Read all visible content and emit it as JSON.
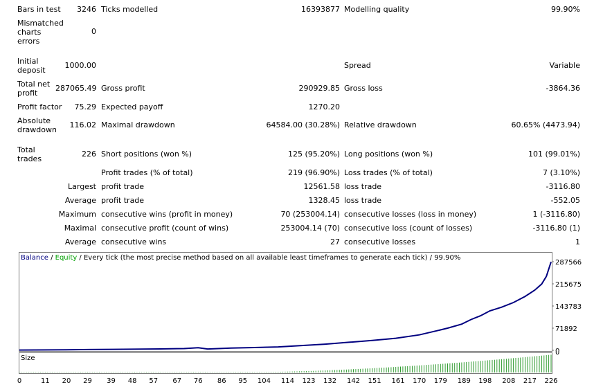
{
  "report": {
    "bars_in_test": {
      "label": "Bars in test",
      "value": "3246"
    },
    "ticks_modelled": {
      "label": "Ticks modelled",
      "value": "16393877"
    },
    "modelling_quality": {
      "label": "Modelling quality",
      "value": "99.90%"
    },
    "mismatched_errors": {
      "label": "Mismatched charts errors",
      "value": "0"
    },
    "initial_deposit": {
      "label": "Initial deposit",
      "value": "1000.00"
    },
    "spread": {
      "label": "Spread",
      "value": "Variable"
    },
    "total_net_profit": {
      "label": "Total net profit",
      "value": "287065.49"
    },
    "gross_profit": {
      "label": "Gross profit",
      "value": "290929.85"
    },
    "gross_loss": {
      "label": "Gross loss",
      "value": "-3864.36"
    },
    "profit_factor": {
      "label": "Profit factor",
      "value": "75.29"
    },
    "expected_payoff": {
      "label": "Expected payoff",
      "value": "1270.20"
    },
    "absolute_drawdown": {
      "label": "Absolute drawdown",
      "value": "116.02"
    },
    "maximal_drawdown": {
      "label": "Maximal drawdown",
      "value": "64584.00 (30.28%)"
    },
    "relative_drawdown": {
      "label": "Relative drawdown",
      "value": "60.65% (4473.94)"
    },
    "total_trades": {
      "label": "Total trades",
      "value": "226"
    },
    "short_positions": {
      "label": "Short positions (won %)",
      "value": "125 (95.20%)"
    },
    "long_positions": {
      "label": "Long positions (won %)",
      "value": "101 (99.01%)"
    },
    "profit_trades": {
      "label": "Profit trades (% of total)",
      "value": "219 (96.90%)"
    },
    "loss_trades": {
      "label": "Loss trades (% of total)",
      "value": "7 (3.10%)"
    },
    "largest": {
      "prefix": "Largest",
      "profit_label": "profit trade",
      "profit_value": "12561.58",
      "loss_label": "loss trade",
      "loss_value": "-3116.80"
    },
    "average": {
      "prefix": "Average",
      "profit_label": "profit trade",
      "profit_value": "1328.45",
      "loss_label": "loss trade",
      "loss_value": "-552.05"
    },
    "maximum": {
      "prefix": "Maximum",
      "profit_label": "consecutive wins (profit in money)",
      "profit_value": "70 (253004.14)",
      "loss_label": "consecutive losses (loss in money)",
      "loss_value": "1 (-3116.80)"
    },
    "maximal": {
      "prefix": "Maximal",
      "profit_label": "consecutive profit (count of wins)",
      "profit_value": "253004.14 (70)",
      "loss_label": "consecutive loss (count of losses)",
      "loss_value": "-3116.80 (1)"
    },
    "average_consecutive": {
      "prefix": "Average",
      "profit_label": "consecutive wins",
      "profit_value": "27",
      "loss_label": "consecutive losses",
      "loss_value": "1"
    }
  },
  "chart": {
    "legend": {
      "balance": "Balance",
      "sep1": " / ",
      "equity": "Equity",
      "rest": " / Every tick (the most precise method based on all available least timeframes to generate each tick) / 99.90%"
    },
    "colors": {
      "balance": "#000080",
      "equity": "#00a000",
      "size_bars": "#2e9a2e"
    },
    "size_label": "Size",
    "size_zero_label": "0"
  },
  "chart_data": {
    "type": "line",
    "x_range": [
      0,
      226
    ],
    "ylim": [
      0,
      287566
    ],
    "y_ticks": [
      "287566",
      "215675",
      "143783",
      "71892",
      "0"
    ],
    "x_ticks": [
      "0",
      "11",
      "20",
      "29",
      "39",
      "48",
      "57",
      "67",
      "76",
      "86",
      "95",
      "104",
      "114",
      "123",
      "132",
      "142",
      "151",
      "161",
      "170",
      "179",
      "189",
      "198",
      "208",
      "217",
      "226"
    ],
    "series": [
      {
        "name": "Balance",
        "x": [
          0,
          20,
          40,
          60,
          70,
          76,
          80,
          90,
          100,
          110,
          120,
          130,
          140,
          150,
          160,
          170,
          178,
          182,
          188,
          192,
          196,
          200,
          205,
          210,
          215,
          219,
          222,
          224,
          226
        ],
        "y": [
          1000,
          1800,
          3200,
          4500,
          5600,
          8500,
          4300,
          7500,
          9000,
          11000,
          15500,
          20000,
          26000,
          32000,
          39000,
          50000,
          64500,
          72000,
          85000,
          100000,
          112000,
          128000,
          140000,
          155000,
          175000,
          195000,
          215000,
          240000,
          287065
        ]
      }
    ]
  }
}
